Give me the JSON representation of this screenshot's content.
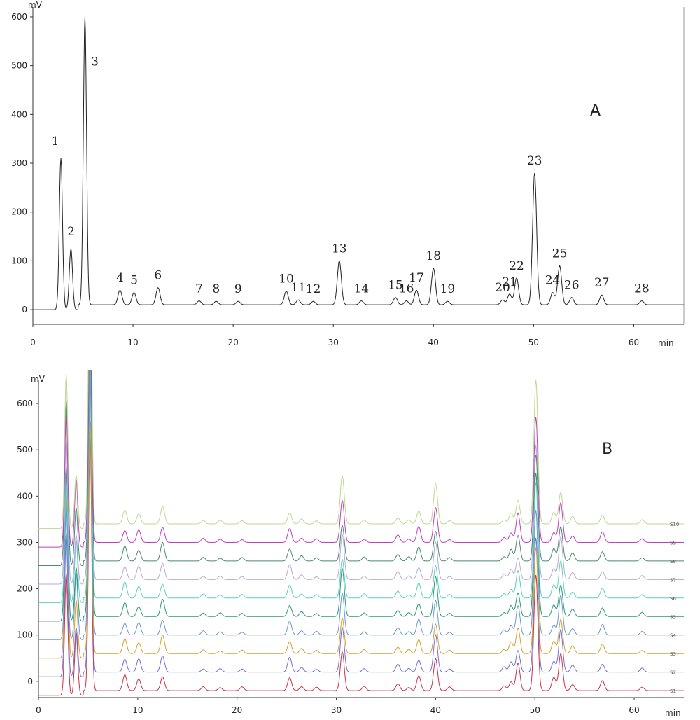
{
  "chart_data": [
    {
      "type": "line",
      "panel_label": "A",
      "ylabel": "mV",
      "xlabel": "min",
      "xlim": [
        0,
        65
      ],
      "ylim": [
        -30,
        620
      ],
      "x_ticks": [
        0,
        10,
        20,
        30,
        40,
        50,
        60
      ],
      "y_ticks": [
        0,
        100,
        200,
        300,
        400,
        500,
        600
      ],
      "baseline": {
        "start": 0,
        "end": 10,
        "step_at": 4.5
      },
      "peaks": [
        {
          "label": "1",
          "rt": 2.8,
          "height": 310
        },
        {
          "label": "2",
          "rt": 3.8,
          "height": 125
        },
        {
          "label": "3",
          "rt": 5.2,
          "height": 590
        },
        {
          "label": "4",
          "rt": 8.7,
          "height": 30
        },
        {
          "label": "5",
          "rt": 10.1,
          "height": 25
        },
        {
          "label": "6",
          "rt": 12.5,
          "height": 35
        },
        {
          "label": "7",
          "rt": 16.6,
          "height": 8
        },
        {
          "label": "8",
          "rt": 18.3,
          "height": 7
        },
        {
          "label": "9",
          "rt": 20.5,
          "height": 7
        },
        {
          "label": "10",
          "rt": 25.3,
          "height": 28
        },
        {
          "label": "11",
          "rt": 26.5,
          "height": 10
        },
        {
          "label": "12",
          "rt": 28.0,
          "height": 7
        },
        {
          "label": "13",
          "rt": 30.6,
          "height": 90
        },
        {
          "label": "14",
          "rt": 32.8,
          "height": 8
        },
        {
          "label": "15",
          "rt": 36.2,
          "height": 15
        },
        {
          "label": "16",
          "rt": 37.3,
          "height": 8
        },
        {
          "label": "17",
          "rt": 38.3,
          "height": 30
        },
        {
          "label": "18",
          "rt": 40.0,
          "height": 75
        },
        {
          "label": "19",
          "rt": 41.4,
          "height": 7
        },
        {
          "label": "20",
          "rt": 46.9,
          "height": 10
        },
        {
          "label": "21",
          "rt": 47.6,
          "height": 22
        },
        {
          "label": "22",
          "rt": 48.3,
          "height": 55
        },
        {
          "label": "23",
          "rt": 50.1,
          "height": 270
        },
        {
          "label": "24",
          "rt": 51.9,
          "height": 25
        },
        {
          "label": "25",
          "rt": 52.6,
          "height": 80
        },
        {
          "label": "26",
          "rt": 53.8,
          "height": 15
        },
        {
          "label": "27",
          "rt": 56.8,
          "height": 20
        },
        {
          "label": "28",
          "rt": 60.8,
          "height": 8
        }
      ]
    },
    {
      "type": "line",
      "panel_label": "B",
      "ylabel": "mV",
      "xlabel": "min",
      "xlim": [
        0,
        65
      ],
      "ylim": [
        -35,
        650
      ],
      "x_ticks": [
        0,
        10,
        20,
        30,
        40,
        50,
        60
      ],
      "y_ticks": [
        0,
        100,
        200,
        300,
        400,
        500,
        600
      ],
      "series": [
        {
          "name": "S1",
          "offset": -30,
          "color": "#cc3344"
        },
        {
          "name": "S2",
          "offset": 10,
          "color": "#7070dd"
        },
        {
          "name": "S3",
          "offset": 50,
          "color": "#d6a030"
        },
        {
          "name": "S4",
          "offset": 90,
          "color": "#6a98d6"
        },
        {
          "name": "S5",
          "offset": 130,
          "color": "#2a9a70"
        },
        {
          "name": "S6",
          "offset": 170,
          "color": "#5ccfc0"
        },
        {
          "name": "S7",
          "offset": 210,
          "color": "#b8a8dc"
        },
        {
          "name": "S8",
          "offset": 250,
          "color": "#4a8a70"
        },
        {
          "name": "S9",
          "offset": 290,
          "color": "#c040c0"
        },
        {
          "name": "S10",
          "offset": 330,
          "color": "#bcd890"
        }
      ],
      "common_peaks_rt": [
        2.8,
        3.8,
        5.2,
        8.7,
        10.1,
        12.5,
        16.6,
        18.3,
        20.5,
        25.3,
        26.5,
        28.0,
        30.6,
        32.8,
        36.2,
        37.3,
        38.3,
        40.0,
        41.4,
        46.9,
        47.6,
        48.3,
        50.1,
        51.9,
        52.6,
        53.8,
        56.8,
        60.8
      ]
    }
  ]
}
